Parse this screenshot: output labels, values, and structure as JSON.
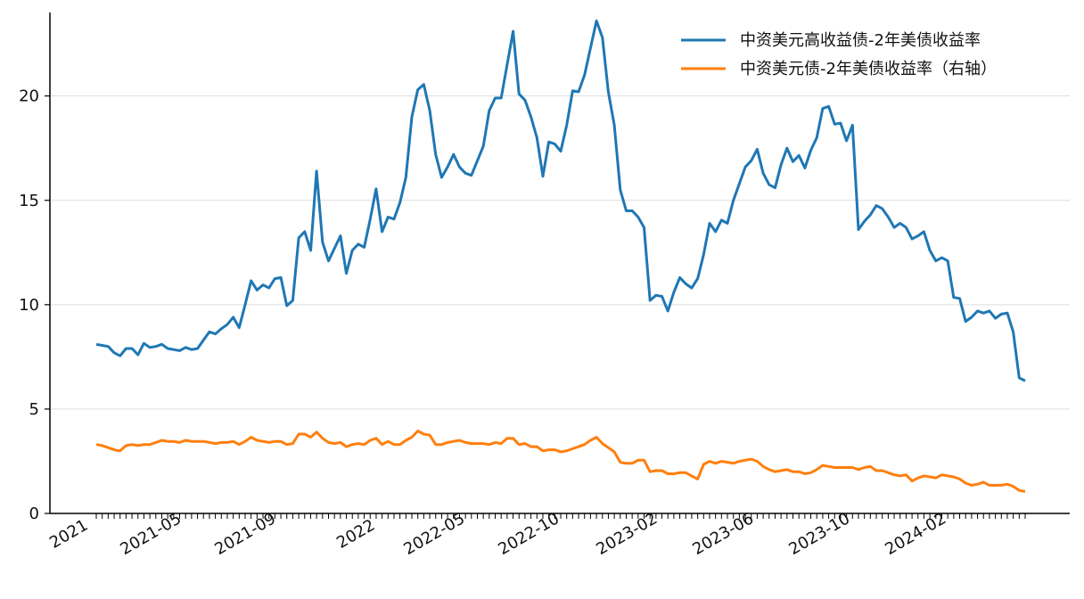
{
  "chart_data": {
    "type": "line",
    "title": "",
    "xlabel": "",
    "ylabel": "",
    "ylim": [
      0,
      24
    ],
    "yticks": [
      0,
      5,
      10,
      15,
      20
    ],
    "grid": "horizontal",
    "legend_position": "top-right",
    "x_tick_labels": [
      "2021",
      "2021-05",
      "2021-09",
      "2022",
      "2022-05",
      "2022-10",
      "2023-02",
      "2023-06",
      "2023-10",
      "2024-02"
    ],
    "x_start": "2021-01",
    "x_end": "2024-05",
    "series": [
      {
        "name": "中资美元高收益债-2年美债收益率",
        "color": "#1f77b4",
        "axis": "left",
        "values": [
          8.1,
          8.05,
          8.0,
          7.7,
          7.55,
          7.9,
          7.9,
          7.6,
          8.15,
          7.95,
          8.0,
          8.1,
          7.9,
          7.85,
          7.8,
          7.95,
          7.85,
          7.9,
          8.3,
          8.7,
          8.6,
          8.85,
          9.05,
          9.4,
          8.9,
          10.0,
          11.15,
          10.7,
          10.95,
          10.8,
          11.25,
          11.3,
          9.95,
          10.2,
          13.2,
          13.5,
          12.6,
          16.4,
          13.0,
          12.1,
          12.7,
          13.3,
          11.5,
          12.6,
          12.9,
          12.75,
          14.1,
          15.55,
          13.5,
          14.2,
          14.1,
          14.9,
          16.1,
          19.0,
          20.3,
          20.55,
          19.3,
          17.2,
          16.1,
          16.6,
          17.2,
          16.6,
          16.3,
          16.2,
          16.9,
          17.6,
          19.3,
          19.9,
          19.9,
          21.5,
          23.1,
          20.1,
          19.8,
          19.0,
          18.0,
          16.15,
          17.8,
          17.7,
          17.35,
          18.6,
          20.25,
          20.2,
          21.0,
          22.3,
          23.6,
          22.8,
          20.2,
          18.6,
          15.5,
          14.5,
          14.5,
          14.2,
          13.7,
          10.2,
          10.45,
          10.4,
          9.7,
          10.6,
          11.3,
          11.0,
          10.8,
          11.25,
          12.4,
          13.9,
          13.5,
          14.05,
          13.9,
          15.0,
          15.8,
          16.6,
          16.9,
          17.45,
          16.3,
          15.75,
          15.6,
          16.7,
          17.5,
          16.85,
          17.15,
          16.55,
          17.4,
          18.0,
          19.4,
          19.5,
          18.65,
          18.7,
          17.85,
          18.6,
          13.6,
          14.0,
          14.3,
          14.75,
          14.6,
          14.2,
          13.7,
          13.9,
          13.7,
          13.15,
          13.3,
          13.5,
          12.6,
          12.1,
          12.25,
          12.1,
          10.35,
          10.3,
          9.2,
          9.4,
          9.7,
          9.6,
          9.7,
          9.35,
          9.55,
          9.6,
          8.7,
          6.5,
          6.35
        ]
      },
      {
        "name": "中资美元债-2年美债收益率（右轴）",
        "color": "#ff7f0e",
        "axis": "right",
        "values": [
          3.3,
          3.25,
          3.15,
          3.05,
          3.0,
          3.25,
          3.3,
          3.25,
          3.3,
          3.3,
          3.4,
          3.5,
          3.45,
          3.45,
          3.4,
          3.5,
          3.45,
          3.45,
          3.45,
          3.4,
          3.35,
          3.4,
          3.4,
          3.45,
          3.3,
          3.45,
          3.65,
          3.5,
          3.45,
          3.4,
          3.45,
          3.45,
          3.3,
          3.35,
          3.8,
          3.8,
          3.65,
          3.9,
          3.6,
          3.4,
          3.35,
          3.4,
          3.2,
          3.3,
          3.35,
          3.3,
          3.5,
          3.6,
          3.3,
          3.45,
          3.3,
          3.3,
          3.5,
          3.65,
          3.95,
          3.8,
          3.75,
          3.3,
          3.3,
          3.4,
          3.45,
          3.5,
          3.4,
          3.35,
          3.35,
          3.35,
          3.3,
          3.4,
          3.35,
          3.6,
          3.6,
          3.3,
          3.35,
          3.2,
          3.2,
          3.0,
          3.05,
          3.05,
          2.95,
          3.0,
          3.1,
          3.2,
          3.3,
          3.5,
          3.65,
          3.35,
          3.15,
          2.95,
          2.45,
          2.4,
          2.4,
          2.55,
          2.55,
          2.0,
          2.05,
          2.05,
          1.9,
          1.9,
          1.95,
          1.95,
          1.8,
          1.65,
          2.35,
          2.5,
          2.4,
          2.5,
          2.45,
          2.4,
          2.5,
          2.55,
          2.6,
          2.5,
          2.25,
          2.1,
          2.0,
          2.05,
          2.1,
          2.0,
          2.0,
          1.9,
          1.95,
          2.1,
          2.3,
          2.25,
          2.2,
          2.2,
          2.2,
          2.2,
          2.1,
          2.2,
          2.25,
          2.05,
          2.05,
          1.95,
          1.85,
          1.8,
          1.85,
          1.55,
          1.7,
          1.8,
          1.75,
          1.7,
          1.85,
          1.8,
          1.75,
          1.65,
          1.45,
          1.35,
          1.4,
          1.5,
          1.35,
          1.35,
          1.35,
          1.4,
          1.3,
          1.1,
          1.05
        ]
      }
    ]
  }
}
